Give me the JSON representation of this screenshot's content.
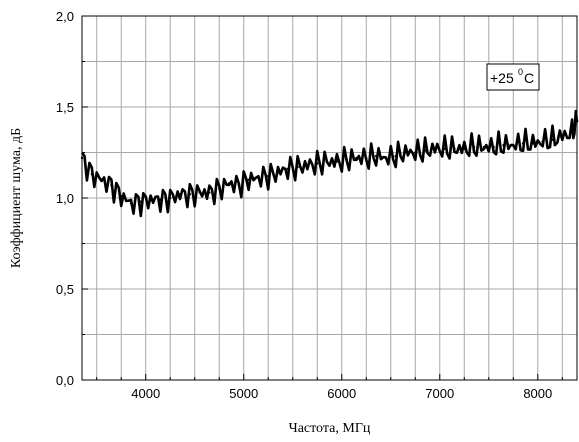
{
  "chart_data": {
    "type": "line",
    "xlabel": "Частота, МГц",
    "ylabel": "Коэффициент шума, дБ",
    "xlim": [
      3350,
      8400
    ],
    "ylim": [
      0,
      2.0
    ],
    "x_ticks": [
      4000,
      5000,
      6000,
      7000,
      8000
    ],
    "x_tick_labels": [
      "4000",
      "5000",
      "6000",
      "7000",
      "8000"
    ],
    "y_ticks": [
      0,
      0.5,
      1.0,
      1.5,
      2.0
    ],
    "y_tick_labels": [
      "0,0",
      "0,5",
      "1,0",
      "1,5",
      "2,0"
    ],
    "grid": true,
    "annotation": {
      "text": "+25",
      "superscript": "0",
      "suffix": "C"
    },
    "series": [
      {
        "x": [
          3350,
          3450,
          3550,
          3650,
          3750,
          3850,
          3950,
          4050,
          4150,
          4250,
          4350,
          4450,
          4550,
          4650,
          4750,
          4850,
          4950,
          5050,
          5150,
          5250,
          5350,
          5450,
          5550,
          5650,
          5750,
          5850,
          5950,
          6050,
          6150,
          6250,
          6350,
          6450,
          6550,
          6650,
          6750,
          6850,
          6950,
          7050,
          7150,
          7250,
          7350,
          7450,
          7550,
          7650,
          7750,
          7850,
          7950,
          8050,
          8150,
          8250,
          8350,
          8400
        ],
        "y": [
          1.22,
          1.13,
          1.1,
          1.07,
          1.01,
          0.97,
          0.98,
          0.99,
          0.99,
          1.0,
          1.02,
          1.02,
          1.03,
          1.03,
          1.05,
          1.08,
          1.07,
          1.1,
          1.11,
          1.12,
          1.14,
          1.16,
          1.17,
          1.18,
          1.19,
          1.2,
          1.2,
          1.21,
          1.22,
          1.22,
          1.23,
          1.22,
          1.23,
          1.25,
          1.25,
          1.26,
          1.27,
          1.27,
          1.27,
          1.27,
          1.28,
          1.28,
          1.28,
          1.29,
          1.29,
          1.3,
          1.3,
          1.31,
          1.32,
          1.34,
          1.36,
          1.42
        ],
        "color": "#000000"
      }
    ]
  }
}
